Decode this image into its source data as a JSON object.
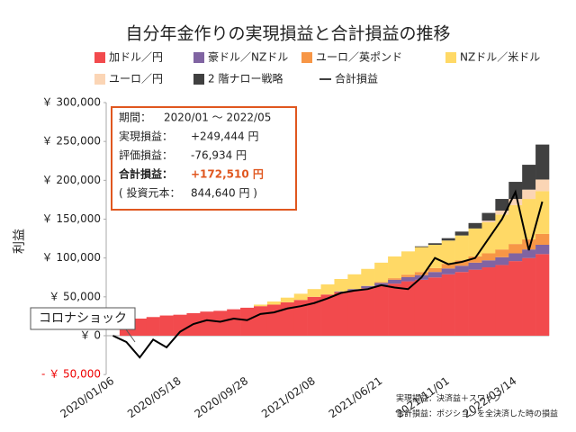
{
  "chart_data": {
    "type": "stacked-bar-line",
    "title": "自分年金作りの実現損益と合計損益の推移",
    "y_label": "利益",
    "categories": [
      "2020/01/06",
      null,
      null,
      null,
      null,
      "2020/05/18",
      null,
      null,
      null,
      null,
      "2020/09/28",
      null,
      null,
      null,
      null,
      "2021/02/08",
      null,
      null,
      null,
      null,
      "2021/06/21",
      null,
      null,
      null,
      null,
      "2021/11/01",
      null,
      null,
      null,
      null,
      "2022/03/14",
      null,
      null
    ],
    "series": [
      {
        "name": "加ドル／円",
        "color": "#f24a4d",
        "values": [
          0,
          18000,
          22000,
          24000,
          26000,
          27000,
          29000,
          31000,
          32000,
          34000,
          36000,
          38000,
          40000,
          43000,
          46000,
          50000,
          53000,
          56000,
          58000,
          61000,
          64000,
          67000,
          70000,
          72000,
          75000,
          79000,
          82000,
          85000,
          88000,
          91000,
          96000,
          100000,
          105000
        ]
      },
      {
        "name": "豪ドル／NZドル",
        "color": "#8064a2",
        "values": [
          0,
          0,
          0,
          0,
          0,
          0,
          0,
          0,
          0,
          0,
          0,
          0,
          0,
          0,
          0,
          0,
          0,
          1000,
          2000,
          3000,
          4000,
          5000,
          5500,
          6000,
          7000,
          7500,
          8000,
          9000,
          9000,
          10000,
          10000,
          11000,
          12000
        ]
      },
      {
        "name": "ユーロ／英ポンド",
        "color": "#f79646",
        "values": [
          0,
          0,
          0,
          0,
          0,
          0,
          0,
          0,
          0,
          0,
          0,
          0,
          0,
          0,
          0,
          0,
          0,
          0,
          0,
          0,
          1000,
          2000,
          3000,
          4000,
          5000,
          6000,
          7000,
          8000,
          9000,
          10000,
          12000,
          13000,
          14000
        ]
      },
      {
        "name": "NZドル／米ドル",
        "color": "#ffd966",
        "values": [
          0,
          0,
          0,
          0,
          0,
          0,
          0,
          0,
          0,
          0,
          0,
          2000,
          4000,
          6000,
          8000,
          10000,
          13000,
          16000,
          19000,
          22000,
          25000,
          28000,
          30000,
          32000,
          30000,
          30000,
          32000,
          36000,
          40000,
          45000,
          50000,
          52000,
          55000
        ]
      },
      {
        "name": "ユーロ／円",
        "color": "#fbd5b5",
        "values": [
          0,
          0,
          0,
          0,
          0,
          0,
          0,
          0,
          0,
          0,
          0,
          0,
          0,
          0,
          0,
          0,
          0,
          0,
          0,
          0,
          0,
          0,
          0,
          0,
          0,
          0,
          0,
          0,
          2000,
          5000,
          8000,
          12000,
          15000
        ]
      },
      {
        "name": "2 階ナロー戦略",
        "color": "#404040",
        "values": [
          0,
          0,
          0,
          0,
          0,
          0,
          0,
          0,
          0,
          0,
          0,
          0,
          0,
          0,
          0,
          0,
          0,
          0,
          0,
          0,
          0,
          0,
          0,
          1000,
          2000,
          3000,
          5000,
          7000,
          10000,
          15000,
          22000,
          32000,
          45000
        ]
      }
    ],
    "line": {
      "name": "合計損益",
      "color": "#000000",
      "values": [
        0,
        -8000,
        -28000,
        -5000,
        -15000,
        5000,
        15000,
        20000,
        18000,
        22000,
        20000,
        28000,
        30000,
        35000,
        38000,
        42000,
        48000,
        55000,
        58000,
        60000,
        65000,
        62000,
        60000,
        75000,
        100000,
        92000,
        95000,
        100000,
        125000,
        150000,
        185000,
        110000,
        172510
      ]
    },
    "ylim": [
      -50000,
      300000
    ],
    "yticks": [
      {
        "value": -50000,
        "label": "- ￥ 50,000"
      },
      {
        "value": 0,
        "label": "￥ 0"
      },
      {
        "value": 50000,
        "label": "￥ 50,000"
      },
      {
        "value": 100000,
        "label": "￥ 100,000"
      },
      {
        "value": 150000,
        "label": "￥ 150,000"
      },
      {
        "value": 200000,
        "label": "￥ 200,000"
      },
      {
        "value": 250000,
        "label": "￥ 250,000"
      },
      {
        "value": 300000,
        "label": "￥ 300,000"
      }
    ],
    "info_box": [
      {
        "label": "期間：",
        "value": "2020/01 ～ 2022/05"
      },
      {
        "label": "実現損益：",
        "value": "+249,444 円"
      },
      {
        "label": "評価損益：",
        "value": "-76,934 円"
      },
      {
        "label": "合計損益：",
        "value": "+172,510 円"
      },
      {
        "label": "( 投資元本：",
        "value": "844,640 円 )"
      }
    ],
    "annotation": "コロナショック",
    "notes": [
      "実現損益：決済益＋スワップ",
      "合計損益：ポジションを全決済した時の損益"
    ]
  }
}
